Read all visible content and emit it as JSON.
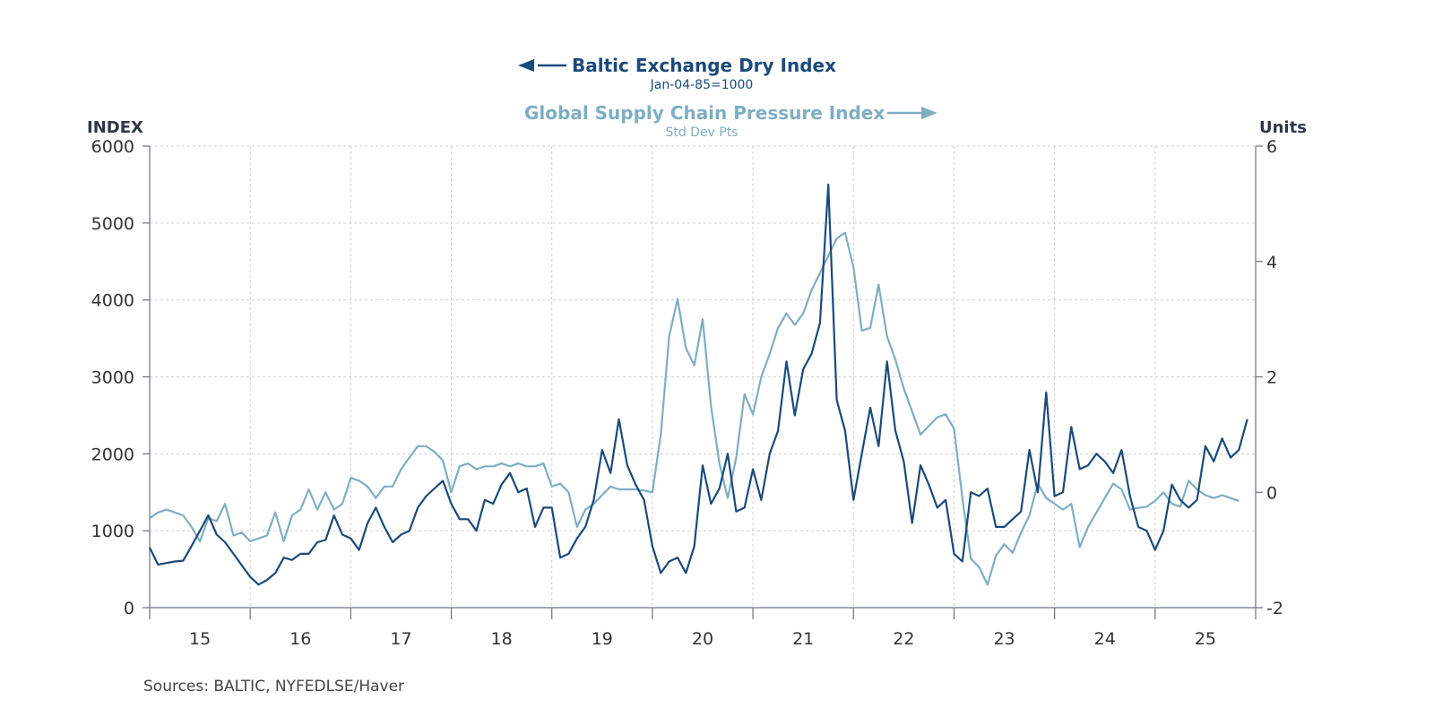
{
  "chart_data": {
    "type": "line",
    "legend_placement": "top-center",
    "grid": true,
    "colors": {
      "bdi": "#1b4a7a",
      "gscpi": "#7eaec2",
      "axis": "#6b7280",
      "grid": "#cfcfcf",
      "text": "#333333"
    },
    "left_axis": {
      "label": "INDEX",
      "ylim": [
        0,
        6000
      ],
      "ticks": [
        "0",
        "1000",
        "2000",
        "3000",
        "4000",
        "5000",
        "6000"
      ]
    },
    "right_axis": {
      "label": "Units",
      "ylim": [
        -2,
        6
      ],
      "ticks": [
        "-2",
        "0",
        "2",
        "4",
        "6"
      ]
    },
    "x_axis": {
      "range": [
        "2015-01",
        "2026-01"
      ],
      "tick_labels": [
        "15",
        "16",
        "17",
        "18",
        "19",
        "20",
        "21",
        "22",
        "23",
        "24",
        "25"
      ]
    },
    "series": [
      {
        "name": "Baltic Exchange Dry Index",
        "subtitle": "Jan-04-85=1000",
        "axis": "left",
        "start": "2015-01",
        "frequency": "monthly",
        "values": [
          780,
          560,
          580,
          600,
          610,
          800,
          1000,
          1200,
          950,
          850,
          700,
          550,
          400,
          300,
          360,
          450,
          650,
          620,
          700,
          700,
          850,
          880,
          1200,
          950,
          900,
          750,
          1100,
          1300,
          1050,
          850,
          950,
          1000,
          1300,
          1450,
          1550,
          1650,
          1350,
          1150,
          1150,
          1000,
          1400,
          1350,
          1600,
          1750,
          1500,
          1550,
          1050,
          1300,
          1300,
          650,
          700,
          900,
          1050,
          1400,
          2050,
          1750,
          2450,
          1850,
          1600,
          1400,
          800,
          450,
          600,
          650,
          450,
          800,
          1850,
          1350,
          1550,
          2000,
          1250,
          1300,
          1800,
          1400,
          2000,
          2300,
          3200,
          2500,
          3100,
          3300,
          3700,
          5500,
          2700,
          2300,
          1400,
          2000,
          2600,
          2100,
          3200,
          2300,
          1900,
          1100,
          1850,
          1600,
          1300,
          1400,
          700,
          600,
          1500,
          1450,
          1550,
          1050,
          1050,
          1150,
          1250,
          2050,
          1500,
          2800,
          1450,
          1500,
          2350,
          1800,
          1850,
          2000,
          1900,
          1750,
          2050,
          1450,
          1050,
          1000,
          750,
          1000,
          1600,
          1400,
          1300,
          1400,
          2100,
          1900,
          2200,
          1950,
          2050,
          2450
        ]
      },
      {
        "name": "Global Supply Chain Pressure Index",
        "subtitle": "Std Dev Pts",
        "axis": "right",
        "start": "2015-01",
        "frequency": "monthly",
        "values": [
          -0.45,
          -0.35,
          -0.3,
          -0.35,
          -0.4,
          -0.6,
          -0.85,
          -0.45,
          -0.5,
          -0.2,
          -0.75,
          -0.7,
          -0.85,
          -0.8,
          -0.75,
          -0.35,
          -0.85,
          -0.4,
          -0.3,
          0.05,
          -0.3,
          0.0,
          -0.3,
          -0.2,
          0.25,
          0.2,
          0.1,
          -0.1,
          0.1,
          0.1,
          0.4,
          0.6,
          0.8,
          0.8,
          0.7,
          0.55,
          0.0,
          0.45,
          0.5,
          0.4,
          0.45,
          0.45,
          0.5,
          0.45,
          0.5,
          0.45,
          0.45,
          0.5,
          0.1,
          0.15,
          0.0,
          -0.6,
          -0.3,
          -0.2,
          -0.05,
          0.1,
          0.05,
          0.05,
          0.05,
          0.03,
          0.0,
          1.0,
          2.7,
          3.35,
          2.5,
          2.2,
          3.0,
          1.5,
          0.5,
          -0.1,
          0.6,
          1.7,
          1.35,
          2.0,
          2.4,
          2.85,
          3.1,
          2.9,
          3.1,
          3.5,
          3.8,
          4.1,
          4.4,
          4.5,
          3.9,
          2.8,
          2.85,
          3.6,
          2.7,
          2.3,
          1.8,
          1.4,
          1.0,
          1.15,
          1.3,
          1.35,
          1.1,
          -0.1,
          -1.15,
          -1.3,
          -1.6,
          -1.1,
          -0.9,
          -1.05,
          -0.7,
          -0.4,
          0.15,
          -0.1,
          -0.2,
          -0.3,
          -0.2,
          -0.95,
          -0.6,
          -0.35,
          -0.1,
          0.15,
          0.05,
          -0.3,
          -0.27,
          -0.25,
          -0.15,
          0.0,
          -0.2,
          -0.25,
          0.2,
          0.05,
          -0.05,
          -0.1,
          -0.05,
          -0.1,
          -0.15
        ]
      }
    ],
    "source": "Sources:  BALTIC, NYFEDLSE/Haver"
  }
}
